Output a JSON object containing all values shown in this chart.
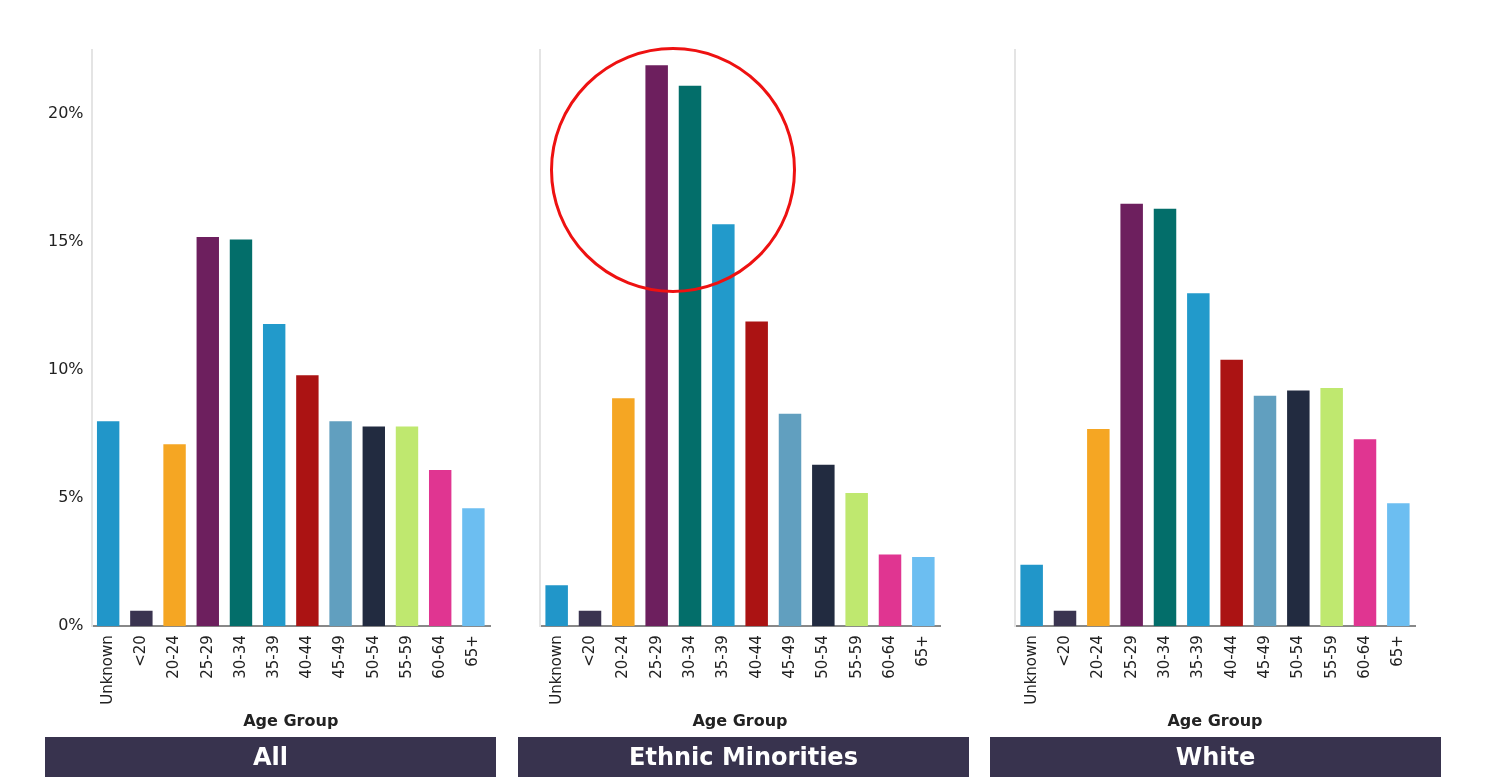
{
  "chart_data": [
    {
      "type": "bar",
      "title": "All",
      "xlabel": "Age Group",
      "categories": [
        "Unknown",
        "<20",
        "20-24",
        "25-29",
        "30-34",
        "35-39",
        "40-44",
        "45-49",
        "50-54",
        "55-59",
        "60-64",
        "65+"
      ],
      "values": [
        8.0,
        0.6,
        7.1,
        15.2,
        15.1,
        11.8,
        9.8,
        8.0,
        7.8,
        7.8,
        6.1,
        4.6
      ],
      "colors": [
        "#2196c9",
        "#3a3450",
        "#f5a623",
        "#6d1f5e",
        "#036e6a",
        "#229acb",
        "#ab1313",
        "#619fbf",
        "#222b40",
        "#bfe86f",
        "#e03591",
        "#6cbef1"
      ],
      "ylim": [
        0,
        22.5
      ],
      "yticks": [
        {
          "value": 0,
          "label": "0%"
        },
        {
          "value": 5,
          "label": "5%"
        },
        {
          "value": 10,
          "label": "10%"
        },
        {
          "value": 15,
          "label": "15%"
        },
        {
          "value": 20,
          "label": "20%"
        }
      ],
      "grid": false,
      "legend": false
    },
    {
      "type": "bar",
      "title": "Ethnic Minorities",
      "xlabel": "Age Group",
      "categories": [
        "Unknown",
        "<20",
        "20-24",
        "25-29",
        "30-34",
        "35-39",
        "40-44",
        "45-49",
        "50-54",
        "55-59",
        "60-64",
        "65+"
      ],
      "values": [
        1.6,
        0.6,
        8.9,
        21.9,
        21.1,
        15.7,
        11.9,
        8.3,
        6.3,
        5.2,
        2.8,
        2.7
      ],
      "colors": [
        "#2196c9",
        "#3a3450",
        "#f5a623",
        "#6d1f5e",
        "#036e6a",
        "#229acb",
        "#ab1313",
        "#619fbf",
        "#222b40",
        "#bfe86f",
        "#e03591",
        "#6cbef1"
      ],
      "ylim": [
        0,
        22.5
      ],
      "tick_labels": "x",
      "grid": false,
      "legend": false
    },
    {
      "type": "bar",
      "title": "White",
      "xlabel": "Age Group",
      "categories": [
        "Unknown",
        "<20",
        "20-24",
        "25-29",
        "30-34",
        "35-39",
        "40-44",
        "45-49",
        "50-54",
        "55-59",
        "60-64",
        "65+"
      ],
      "values": [
        2.4,
        0.6,
        7.7,
        16.5,
        16.3,
        13.0,
        10.4,
        9.0,
        9.2,
        9.3,
        7.3,
        4.8
      ],
      "colors": [
        "#2196c9",
        "#3a3450",
        "#f5a623",
        "#6d1f5e",
        "#036e6a",
        "#229acb",
        "#ab1313",
        "#619fbf",
        "#222b40",
        "#bfe86f",
        "#e03591",
        "#6cbef1"
      ],
      "ylim": [
        0,
        22.5
      ],
      "tick_labels": "x",
      "grid": false,
      "legend": false
    }
  ]
}
